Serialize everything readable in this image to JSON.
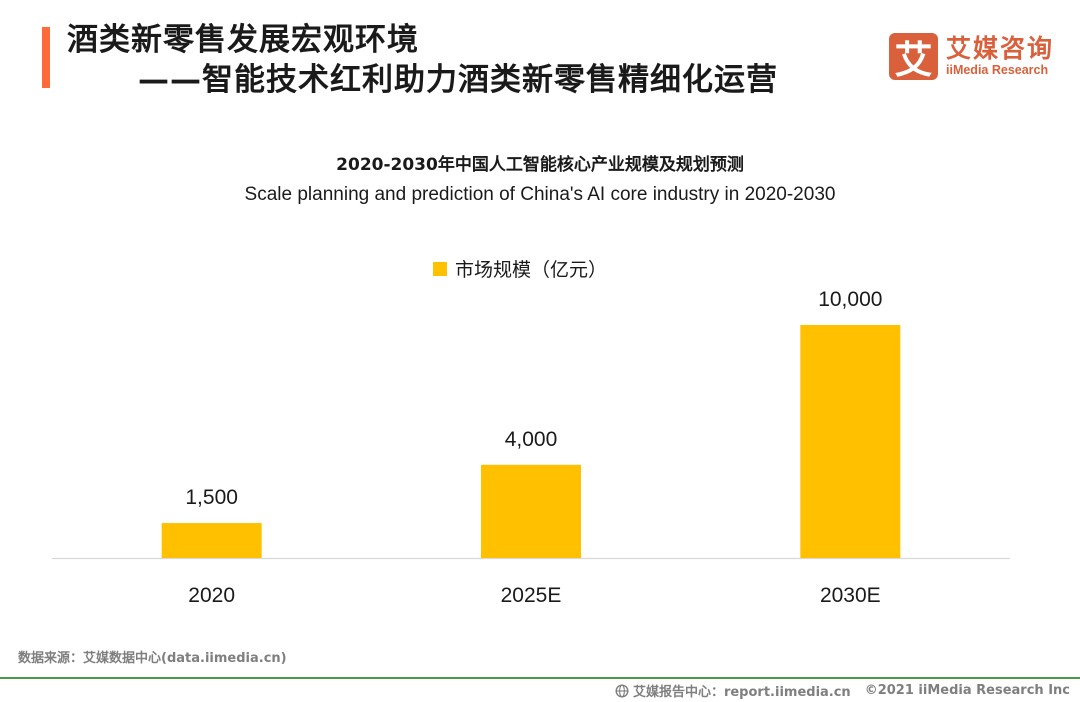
{
  "header": {
    "title_line1": "酒类新零售发展宏观环境",
    "title_line2": "——智能技术红利助力酒类新零售精细化运营",
    "accent_color": "#fe6a3a"
  },
  "logo": {
    "mark": "艾",
    "name_cn": "艾媒咨询",
    "name_en": "iiMedia Research",
    "color": "#d9603b"
  },
  "chart_data": {
    "type": "bar",
    "title": "2020-2030年中国人工智能核心产业规模及规划预测",
    "subtitle": "Scale planning and prediction of China's AI core industry in 2020-2030",
    "categories": [
      "2020",
      "2025E",
      "2030E"
    ],
    "series": [
      {
        "name": "市场规模（亿元）",
        "values": [
          1500,
          4000,
          10000
        ],
        "color": "#ffc000"
      }
    ],
    "data_labels": [
      "1,500",
      "4,000",
      "10,000"
    ],
    "xlabel": "",
    "ylabel": "",
    "ylim": [
      0,
      10000
    ],
    "grid": false,
    "legend": "top-center"
  },
  "footer": {
    "source": "数据来源：艾媒数据中心(data.iimedia.cn)",
    "report_center": "艾媒报告中心：report.iimedia.cn",
    "copyright": "©2021  iiMedia Research  Inc",
    "line_color": "#4a9a4a"
  }
}
